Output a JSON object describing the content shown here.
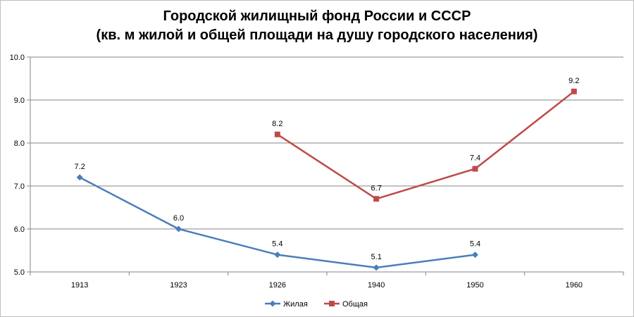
{
  "chart_data": {
    "type": "line",
    "title_line1": "Городской жилищный фонд России и СССР",
    "title_line2": "(кв. м жилой и общей площади на душу городского населения)",
    "categories": [
      "1913",
      "1923",
      "1926",
      "1940",
      "1950",
      "1960"
    ],
    "ylim": [
      5.0,
      10.0
    ],
    "yticks": [
      "5.0",
      "6.0",
      "7.0",
      "8.0",
      "9.0",
      "10.0"
    ],
    "grid": true,
    "legend_position": "bottom",
    "series": [
      {
        "name": "Жилая",
        "color": "#4a7ebb",
        "marker": "diamond",
        "values": [
          7.2,
          6.0,
          5.4,
          5.1,
          5.4,
          null
        ],
        "labels": [
          "7.2",
          "6.0",
          "5.4",
          "5.1",
          "5.4",
          ""
        ]
      },
      {
        "name": "Общая",
        "color": "#be4b48",
        "marker": "square",
        "values": [
          null,
          null,
          8.2,
          6.7,
          7.4,
          9.2
        ],
        "labels": [
          "",
          "",
          "8.2",
          "6.7",
          "7.4",
          "9.2"
        ]
      }
    ]
  }
}
